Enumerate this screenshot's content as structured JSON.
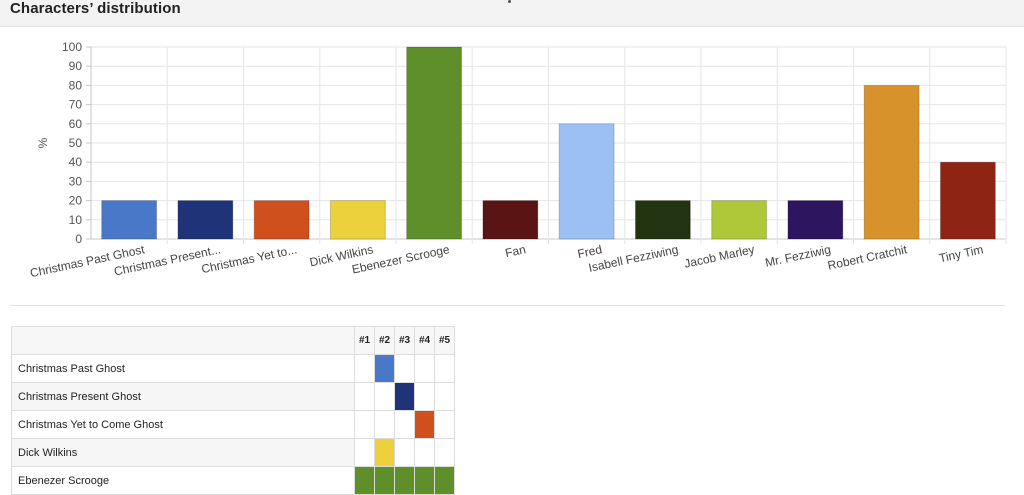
{
  "header": {
    "title": "Characters’ distribution"
  },
  "colors": {
    "Christmas Past Ghost": "#4a78c8",
    "Christmas Present Ghost": "#1f3478",
    "Christmas Yet to Come Ghost": "#cf4f1d",
    "Dick Wilkins": "#ecd03c",
    "Ebenezer Scrooge": "#5f8f2a",
    "Fan": "#5a1414",
    "Fred": "#9cc0f4",
    "Isabell Fezziwing": "#223311",
    "Jacob Marley": "#aec83a",
    "Mr. Fezziwig": "#2e1560",
    "Robert Cratchit": "#d8922c",
    "Tiny Tim": "#8e2413"
  },
  "chart_data": {
    "type": "bar",
    "title": "",
    "xlabel": "",
    "ylabel": "%",
    "ylim": [
      0,
      100
    ],
    "yticks": [
      0,
      10,
      20,
      30,
      40,
      50,
      60,
      70,
      80,
      90,
      100
    ],
    "grid": true,
    "categories": [
      "Christmas Past Ghost",
      "Christmas Present Ghost",
      "Christmas Yet to Come Ghost",
      "Dick Wilkins",
      "Ebenezer Scrooge",
      "Fan",
      "Fred",
      "Isabell Fezziwing",
      "Jacob Marley",
      "Mr. Fezziwig",
      "Robert Cratchit",
      "Tiny Tim"
    ],
    "tick_labels": [
      "Christmas Past Ghost",
      "Christmas Present...",
      "Christmas Yet to...",
      "Dick Wilkins",
      "Ebenezer Scrooge",
      "Fan",
      "Fred",
      "Isabell Fezziwing",
      "Jacob Marley",
      "Mr. Fezziwig",
      "Robert Cratchit",
      "Tiny Tim"
    ],
    "values": [
      20,
      20,
      20,
      20,
      100,
      20,
      60,
      20,
      20,
      20,
      80,
      40
    ]
  },
  "table": {
    "columns": [
      "#1",
      "#2",
      "#3",
      "#4",
      "#5"
    ],
    "rows": [
      {
        "name": "Christmas Past Ghost",
        "cells": [
          false,
          true,
          false,
          false,
          false
        ]
      },
      {
        "name": "Christmas Present Ghost",
        "cells": [
          false,
          false,
          true,
          false,
          false
        ]
      },
      {
        "name": "Christmas Yet to Come Ghost",
        "cells": [
          false,
          false,
          false,
          true,
          false
        ]
      },
      {
        "name": "Dick Wilkins",
        "cells": [
          false,
          true,
          false,
          false,
          false
        ]
      },
      {
        "name": "Ebenezer Scrooge",
        "cells": [
          true,
          true,
          true,
          true,
          true
        ]
      }
    ]
  }
}
